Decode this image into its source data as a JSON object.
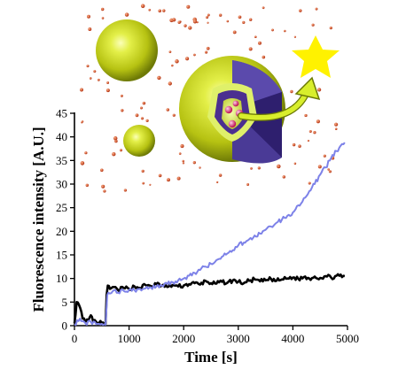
{
  "chart_data": {
    "type": "line",
    "title": "",
    "xlabel": "Time [s]",
    "ylabel": "Fluorescence intensity [A.U.]",
    "xlim": [
      0,
      5000
    ],
    "ylim": [
      0,
      45
    ],
    "xticks": [
      0,
      1000,
      2000,
      3000,
      4000,
      5000
    ],
    "yticks": [
      0,
      5,
      10,
      15,
      20,
      25,
      30,
      35,
      40,
      45
    ],
    "grid": false,
    "legend": "none",
    "series": [
      {
        "color": "#000000",
        "x": [
          0,
          40,
          80,
          150,
          200,
          260,
          300,
          340,
          400,
          450,
          500,
          540,
          570,
          590,
          610,
          650,
          700,
          800,
          900,
          1000,
          1100,
          1200,
          1300,
          1400,
          1500,
          1600,
          1700,
          1800,
          1900,
          2000,
          2100,
          2200,
          2300,
          2400,
          2500,
          2600,
          2700,
          2800,
          2900,
          3000,
          3100,
          3200,
          3300,
          3400,
          3500,
          3600,
          3700,
          3800,
          3900,
          4000,
          4100,
          4200,
          4300,
          4400,
          4500,
          4600,
          4700,
          4800,
          4900,
          4950
        ],
        "values": [
          0.5,
          5.0,
          4.5,
          1.5,
          0.8,
          1.2,
          2.2,
          1.0,
          0.8,
          0.6,
          0.5,
          0.4,
          0.4,
          6.5,
          8.5,
          7.8,
          8.2,
          7.5,
          8.0,
          7.8,
          8.3,
          8.0,
          8.6,
          8.4,
          8.8,
          8.5,
          8.2,
          8.6,
          8.3,
          8.5,
          8.8,
          9.0,
          8.7,
          9.5,
          9.0,
          8.9,
          9.3,
          9.1,
          9.6,
          9.3,
          9.0,
          9.5,
          9.8,
          9.4,
          9.6,
          9.9,
          9.5,
          9.8,
          10.0,
          10.2,
          9.9,
          10.3,
          10.0,
          10.4,
          10.1,
          10.5,
          10.2,
          10.6,
          10.3,
          10.5
        ]
      },
      {
        "color": "#7d82e8",
        "x": [
          0,
          100,
          200,
          300,
          400,
          500,
          570,
          600,
          620,
          650,
          700,
          800,
          900,
          1000,
          1100,
          1200,
          1300,
          1400,
          1500,
          1600,
          1700,
          1800,
          1900,
          2000,
          2100,
          2200,
          2300,
          2400,
          2500,
          2600,
          2700,
          2800,
          2900,
          3000,
          3100,
          3200,
          3300,
          3400,
          3500,
          3600,
          3700,
          3800,
          3900,
          4000,
          4100,
          4200,
          4300,
          4400,
          4500,
          4600,
          4700,
          4800,
          4900,
          4950
        ],
        "values": [
          0.3,
          1.5,
          0.5,
          0.8,
          0.3,
          0.4,
          0.2,
          6.5,
          7.0,
          6.8,
          7.3,
          7.0,
          7.4,
          7.6,
          7.5,
          7.8,
          7.9,
          8.1,
          8.3,
          8.5,
          8.8,
          9.2,
          9.6,
          10.0,
          10.6,
          11.2,
          11.8,
          12.5,
          13.1,
          13.9,
          14.6,
          15.3,
          16.0,
          17.0,
          17.6,
          18.3,
          19.1,
          19.5,
          20.3,
          21.0,
          21.8,
          22.5,
          23.3,
          24.0,
          25.5,
          27.0,
          28.5,
          30.0,
          32.0,
          33.5,
          35.5,
          37.0,
          38.5,
          38.8
        ]
      }
    ]
  },
  "colors": {
    "sphere": "#b8c41a",
    "shell_inner": "#3e2b86",
    "particle": "#d2522a",
    "star": "#fff200",
    "arrow": "#d8ee2c"
  },
  "illustration": {
    "objects": [
      "large-nanoparticle-sphere",
      "small-nanoparticle-sphere",
      "cutaway-capsule-with-cargo",
      "release-arrow",
      "star-signal"
    ]
  }
}
